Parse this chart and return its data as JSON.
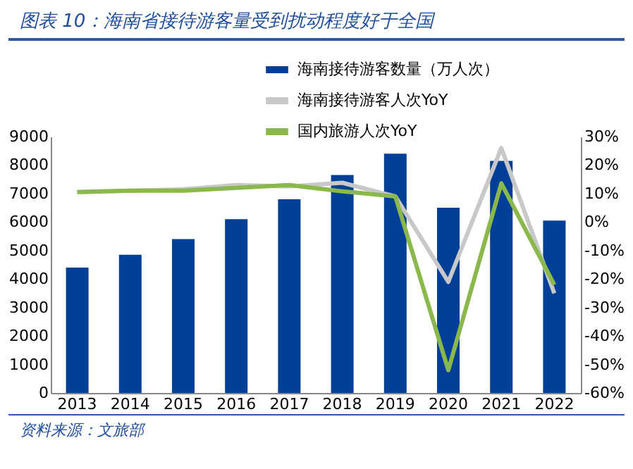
{
  "chart_data": {
    "type": "bar",
    "title": "图表 10：海南省接待游客量受到扰动程度好于全国",
    "categories": [
      "2013",
      "2014",
      "2015",
      "2016",
      "2017",
      "2018",
      "2019",
      "2020",
      "2021",
      "2022"
    ],
    "series": [
      {
        "name": "海南接待游客数量（万人次）",
        "color": "#003f98",
        "values": [
          4400,
          4850,
          5400,
          6100,
          6800,
          7650,
          8400,
          6500,
          8150,
          6050
        ]
      },
      {
        "name": "海南接待游客人次YoY",
        "type": "line",
        "axis": "y2",
        "color": "#c8c8c8",
        "values": [
          10.5,
          11,
          11.5,
          13,
          12.5,
          13.8,
          9,
          -21,
          26,
          -25
        ]
      },
      {
        "name": "国内旅游人次YoY",
        "type": "line",
        "axis": "y2",
        "color": "#8ab84a",
        "values": [
          10.5,
          11,
          11,
          12,
          13,
          10.8,
          9,
          -52,
          13.6,
          -22
        ]
      }
    ],
    "ylim": [
      0,
      9000
    ],
    "yticks": [
      0,
      1000,
      2000,
      3000,
      4000,
      5000,
      6000,
      7000,
      8000,
      9000
    ],
    "y2lim": [
      -60,
      30
    ],
    "y2ticks": [
      {
        "value": -60,
        "label": "-60%"
      },
      {
        "value": -50,
        "label": "-50%"
      },
      {
        "value": -40,
        "label": "-40%"
      },
      {
        "value": -30,
        "label": "-30%"
      },
      {
        "value": -20,
        "label": "-20%"
      },
      {
        "value": -10,
        "label": "-10%"
      },
      {
        "value": 0,
        "label": "0%"
      },
      {
        "value": 10,
        "label": "10%"
      },
      {
        "value": 20,
        "label": "20%"
      },
      {
        "value": 30,
        "label": "30%"
      }
    ],
    "legend": "top right",
    "grid": false,
    "marker": "none",
    "annotations": [
      "资料来源：文旅部"
    ]
  }
}
